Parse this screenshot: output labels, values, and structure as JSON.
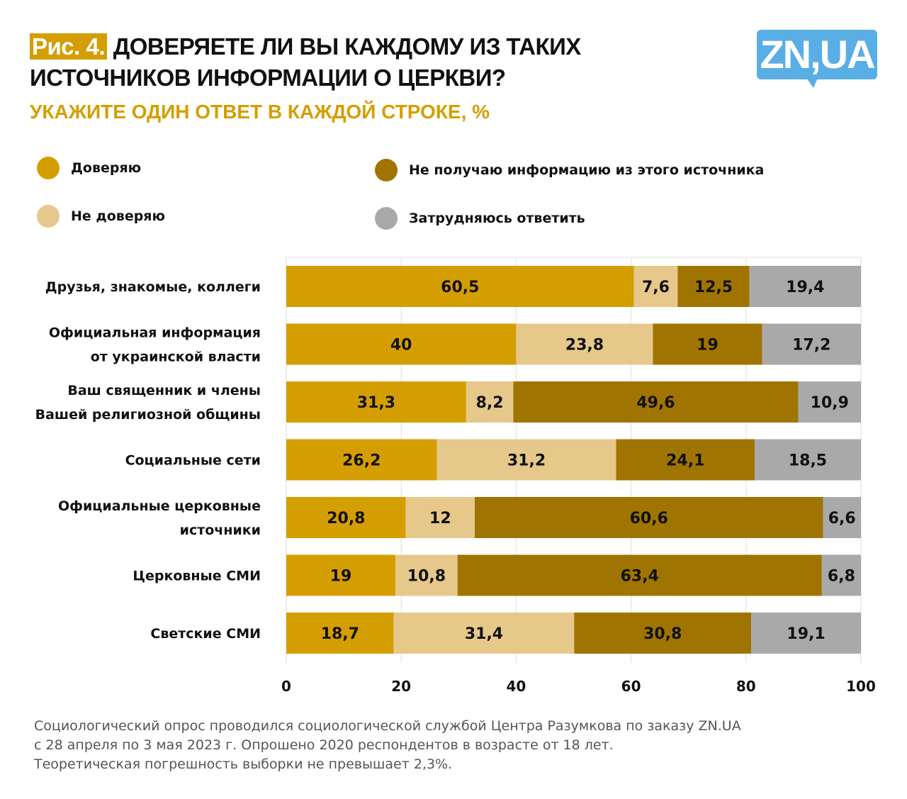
{
  "header": {
    "figure_label": "Рис. 4.",
    "title_line1": "ДОВЕРЯЕТЕ ЛИ ВЫ КАЖДОМУ ИЗ ТАКИХ",
    "title_line2": "ИСТОЧНИКОВ ИНФОРМАЦИИ О ЦЕРКВИ?",
    "subtitle": "УКАЖИТЕ ОДИН ОТВЕТ В КАЖДОЙ СТРОКЕ, %",
    "logo": "ZN,UA"
  },
  "colors": {
    "trust": "#D59E00",
    "distrust": "#E6C88B",
    "no_info": "#A07400",
    "hard": "#A9A9A9",
    "logo": "#5AAEE6"
  },
  "chart_data": {
    "type": "bar",
    "orientation": "horizontal-stacked",
    "title": "ДОВЕРЯЕТЕ ЛИ ВЫ КАЖДОМУ ИЗ ТАКИХ ИСТОЧНИКОВ ИНФОРМАЦИИ О ЦЕРКВИ?",
    "xlim": [
      0,
      100
    ],
    "xticks": [
      "0",
      "20",
      "40",
      "60",
      "80",
      "100"
    ],
    "grid": true,
    "legend_placement": "top",
    "categories": [
      [
        "Друзья, знакомые, коллеги"
      ],
      [
        "Официальная информация",
        "от украинской власти"
      ],
      [
        "Ваш священник и члены",
        "Вашей религиозной общины"
      ],
      [
        "Социальные сети"
      ],
      [
        "Официальные церковные",
        "источники"
      ],
      [
        "Церковные СМИ"
      ],
      [
        "Светские СМИ"
      ]
    ],
    "series": [
      {
        "name": "Доверяю",
        "color": "#D59E00",
        "values": [
          60.5,
          40,
          31.3,
          26.2,
          20.8,
          19,
          18.7
        ],
        "labels": [
          "60,5",
          "40",
          "31,3",
          "26,2",
          "20,8",
          "19",
          "18,7"
        ]
      },
      {
        "name": "Не доверяю",
        "color": "#E6C88B",
        "values": [
          7.6,
          23.8,
          8.2,
          31.2,
          12,
          10.8,
          31.4
        ],
        "labels": [
          "7,6",
          "23,8",
          "8,2",
          "31,2",
          "12",
          "10,8",
          "31,4"
        ]
      },
      {
        "name": "Не получаю информацию из этого источника",
        "color": "#A07400",
        "values": [
          12.5,
          19,
          49.6,
          24.1,
          60.6,
          63.4,
          30.8
        ],
        "labels": [
          "12,5",
          "19",
          "49,6",
          "24,1",
          "60,6",
          "63,4",
          "30,8"
        ]
      },
      {
        "name": "Затрудняюсь ответить",
        "color": "#A9A9A9",
        "values": [
          19.4,
          17.2,
          10.9,
          18.5,
          6.6,
          6.8,
          19.1
        ],
        "labels": [
          "19,4",
          "17,2",
          "10,9",
          "18,5",
          "6,6",
          "6,8",
          "19,1"
        ]
      }
    ]
  },
  "footer": {
    "line1": "Социологический опрос проводился социологической службой Центра Разумкова по заказу ZN.UA",
    "line2": "с 28 апреля по 3 мая 2023 г. Опрошено 2020 респондентов в возрасте от 18 лет.",
    "line3": "Теоретическая погрешность выборки не превышает 2,3%."
  }
}
